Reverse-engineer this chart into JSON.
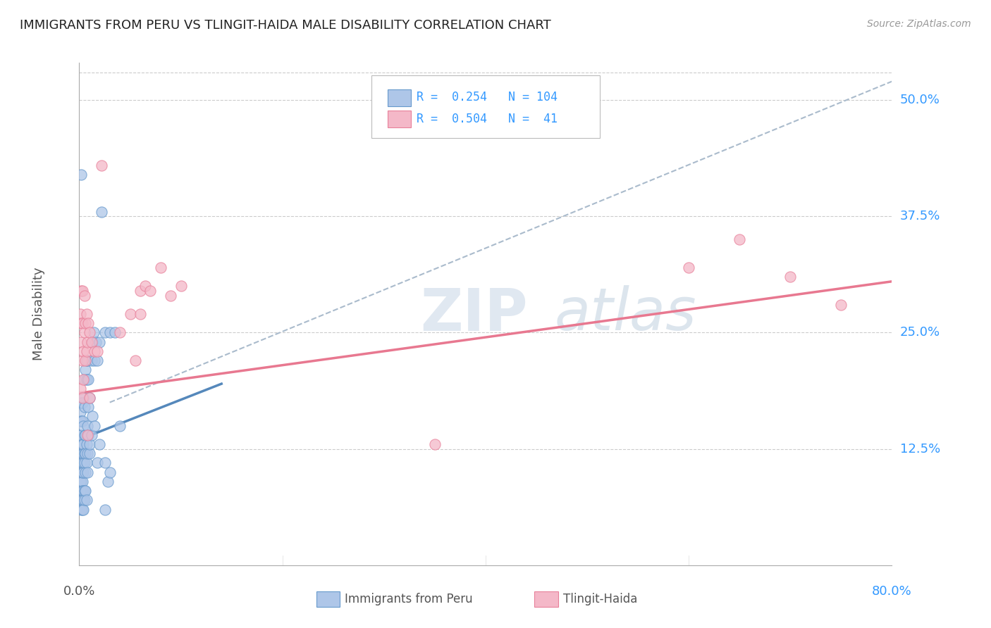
{
  "title": "IMMIGRANTS FROM PERU VS TLINGIT-HAIDA MALE DISABILITY CORRELATION CHART",
  "source": "Source: ZipAtlas.com",
  "ylabel": "Male Disability",
  "ytick_labels": [
    "12.5%",
    "25.0%",
    "37.5%",
    "50.0%"
  ],
  "ytick_values": [
    0.125,
    0.25,
    0.375,
    0.5
  ],
  "xlim": [
    0.0,
    0.8
  ],
  "ylim": [
    0.0,
    0.54
  ],
  "blue_color": "#aec6e8",
  "blue_edge": "#6699cc",
  "pink_color": "#f4b8c8",
  "pink_edge": "#e8809a",
  "blue_line_color": "#5588bb",
  "pink_line_color": "#e87890",
  "dashed_line_color": "#aabbcc",
  "peru_points": [
    [
      0.001,
      0.09
    ],
    [
      0.001,
      0.1
    ],
    [
      0.001,
      0.11
    ],
    [
      0.001,
      0.12
    ],
    [
      0.001,
      0.13
    ],
    [
      0.001,
      0.14
    ],
    [
      0.001,
      0.08
    ],
    [
      0.001,
      0.07
    ],
    [
      0.001,
      0.155
    ],
    [
      0.001,
      0.165
    ],
    [
      0.002,
      0.09
    ],
    [
      0.002,
      0.1
    ],
    [
      0.002,
      0.11
    ],
    [
      0.002,
      0.12
    ],
    [
      0.002,
      0.13
    ],
    [
      0.002,
      0.14
    ],
    [
      0.002,
      0.08
    ],
    [
      0.002,
      0.07
    ],
    [
      0.002,
      0.06
    ],
    [
      0.002,
      0.155
    ],
    [
      0.002,
      0.175
    ],
    [
      0.003,
      0.09
    ],
    [
      0.003,
      0.1
    ],
    [
      0.003,
      0.11
    ],
    [
      0.003,
      0.12
    ],
    [
      0.003,
      0.13
    ],
    [
      0.003,
      0.155
    ],
    [
      0.003,
      0.08
    ],
    [
      0.003,
      0.07
    ],
    [
      0.003,
      0.06
    ],
    [
      0.003,
      0.175
    ],
    [
      0.004,
      0.1
    ],
    [
      0.004,
      0.11
    ],
    [
      0.004,
      0.12
    ],
    [
      0.004,
      0.13
    ],
    [
      0.004,
      0.15
    ],
    [
      0.004,
      0.18
    ],
    [
      0.004,
      0.08
    ],
    [
      0.004,
      0.07
    ],
    [
      0.004,
      0.06
    ],
    [
      0.005,
      0.11
    ],
    [
      0.005,
      0.12
    ],
    [
      0.005,
      0.14
    ],
    [
      0.005,
      0.17
    ],
    [
      0.005,
      0.2
    ],
    [
      0.005,
      0.08
    ],
    [
      0.005,
      0.07
    ],
    [
      0.006,
      0.1
    ],
    [
      0.006,
      0.12
    ],
    [
      0.006,
      0.14
    ],
    [
      0.006,
      0.21
    ],
    [
      0.006,
      0.08
    ],
    [
      0.007,
      0.11
    ],
    [
      0.007,
      0.13
    ],
    [
      0.007,
      0.2
    ],
    [
      0.007,
      0.22
    ],
    [
      0.007,
      0.07
    ],
    [
      0.008,
      0.12
    ],
    [
      0.008,
      0.15
    ],
    [
      0.008,
      0.22
    ],
    [
      0.008,
      0.1
    ],
    [
      0.009,
      0.14
    ],
    [
      0.009,
      0.17
    ],
    [
      0.009,
      0.2
    ],
    [
      0.01,
      0.12
    ],
    [
      0.01,
      0.18
    ],
    [
      0.01,
      0.13
    ],
    [
      0.012,
      0.14
    ],
    [
      0.012,
      0.22
    ],
    [
      0.013,
      0.16
    ],
    [
      0.013,
      0.24
    ],
    [
      0.014,
      0.25
    ],
    [
      0.015,
      0.22
    ],
    [
      0.015,
      0.15
    ],
    [
      0.016,
      0.24
    ],
    [
      0.018,
      0.22
    ],
    [
      0.018,
      0.11
    ],
    [
      0.02,
      0.24
    ],
    [
      0.02,
      0.13
    ],
    [
      0.022,
      0.38
    ],
    [
      0.025,
      0.25
    ],
    [
      0.025,
      0.11
    ],
    [
      0.025,
      0.06
    ],
    [
      0.028,
      0.09
    ],
    [
      0.03,
      0.25
    ],
    [
      0.03,
      0.1
    ],
    [
      0.035,
      0.25
    ],
    [
      0.04,
      0.15
    ],
    [
      0.002,
      0.42
    ]
  ],
  "tlingit_points": [
    [
      0.001,
      0.27
    ],
    [
      0.001,
      0.19
    ],
    [
      0.002,
      0.24
    ],
    [
      0.002,
      0.26
    ],
    [
      0.002,
      0.295
    ],
    [
      0.003,
      0.18
    ],
    [
      0.003,
      0.22
    ],
    [
      0.003,
      0.26
    ],
    [
      0.003,
      0.295
    ],
    [
      0.004,
      0.2
    ],
    [
      0.004,
      0.23
    ],
    [
      0.005,
      0.25
    ],
    [
      0.005,
      0.29
    ],
    [
      0.006,
      0.22
    ],
    [
      0.006,
      0.26
    ],
    [
      0.007,
      0.23
    ],
    [
      0.007,
      0.27
    ],
    [
      0.008,
      0.14
    ],
    [
      0.008,
      0.24
    ],
    [
      0.009,
      0.26
    ],
    [
      0.01,
      0.18
    ],
    [
      0.01,
      0.25
    ],
    [
      0.012,
      0.24
    ],
    [
      0.015,
      0.23
    ],
    [
      0.018,
      0.23
    ],
    [
      0.022,
      0.43
    ],
    [
      0.04,
      0.25
    ],
    [
      0.05,
      0.27
    ],
    [
      0.055,
      0.22
    ],
    [
      0.06,
      0.27
    ],
    [
      0.06,
      0.295
    ],
    [
      0.065,
      0.3
    ],
    [
      0.07,
      0.295
    ],
    [
      0.08,
      0.32
    ],
    [
      0.09,
      0.29
    ],
    [
      0.1,
      0.3
    ],
    [
      0.35,
      0.13
    ],
    [
      0.6,
      0.32
    ],
    [
      0.65,
      0.35
    ],
    [
      0.7,
      0.31
    ],
    [
      0.75,
      0.28
    ]
  ],
  "peru_line": {
    "x0": 0.0,
    "y0": 0.135,
    "x1": 0.14,
    "y1": 0.195
  },
  "tlingit_line": {
    "x0": 0.0,
    "y0": 0.185,
    "x1": 0.8,
    "y1": 0.305
  },
  "dashed_line": {
    "x0": 0.03,
    "y0": 0.175,
    "x1": 0.8,
    "y1": 0.52
  }
}
